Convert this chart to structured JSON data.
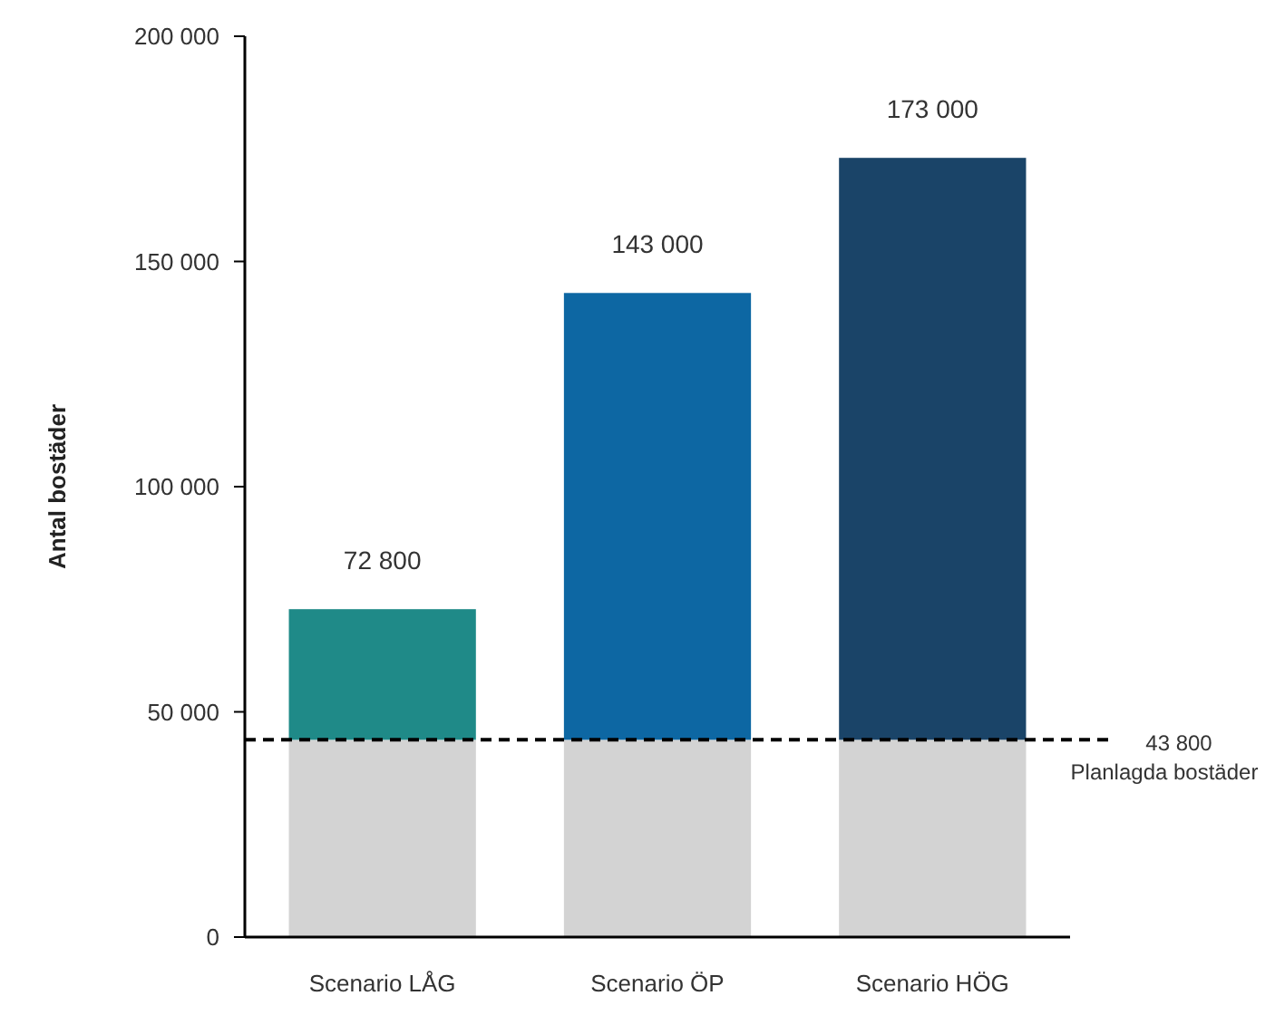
{
  "chart_data": {
    "type": "bar",
    "stacked": true,
    "ylabel": "Antal bostäder",
    "categories": [
      "Scenario LÅG",
      "Scenario ÖP",
      "Scenario HÖG"
    ],
    "series": [
      {
        "color": "#d3d3d3",
        "values": [
          43800,
          43800,
          43800
        ]
      },
      {
        "colors": [
          "#1f8a88",
          "#0d67a3",
          "#1a4468"
        ],
        "values": [
          29000,
          99200,
          129200
        ]
      }
    ],
    "totals": [
      "72 800",
      "143 000",
      "173 000"
    ],
    "ylim": [
      0,
      200000
    ],
    "yticks": [
      {
        "value": 0,
        "label": "0"
      },
      {
        "value": 50000,
        "label": "50 000"
      },
      {
        "value": 100000,
        "label": "100 000"
      },
      {
        "value": 150000,
        "label": "150 000"
      },
      {
        "value": 200000,
        "label": "200 000"
      }
    ],
    "ref_lines": [
      {
        "axis": "y",
        "value": 43800,
        "label": "43 800\nPlanlagda bostäder",
        "color": "#000000",
        "line_style": "dashed"
      }
    ],
    "grid": false
  }
}
